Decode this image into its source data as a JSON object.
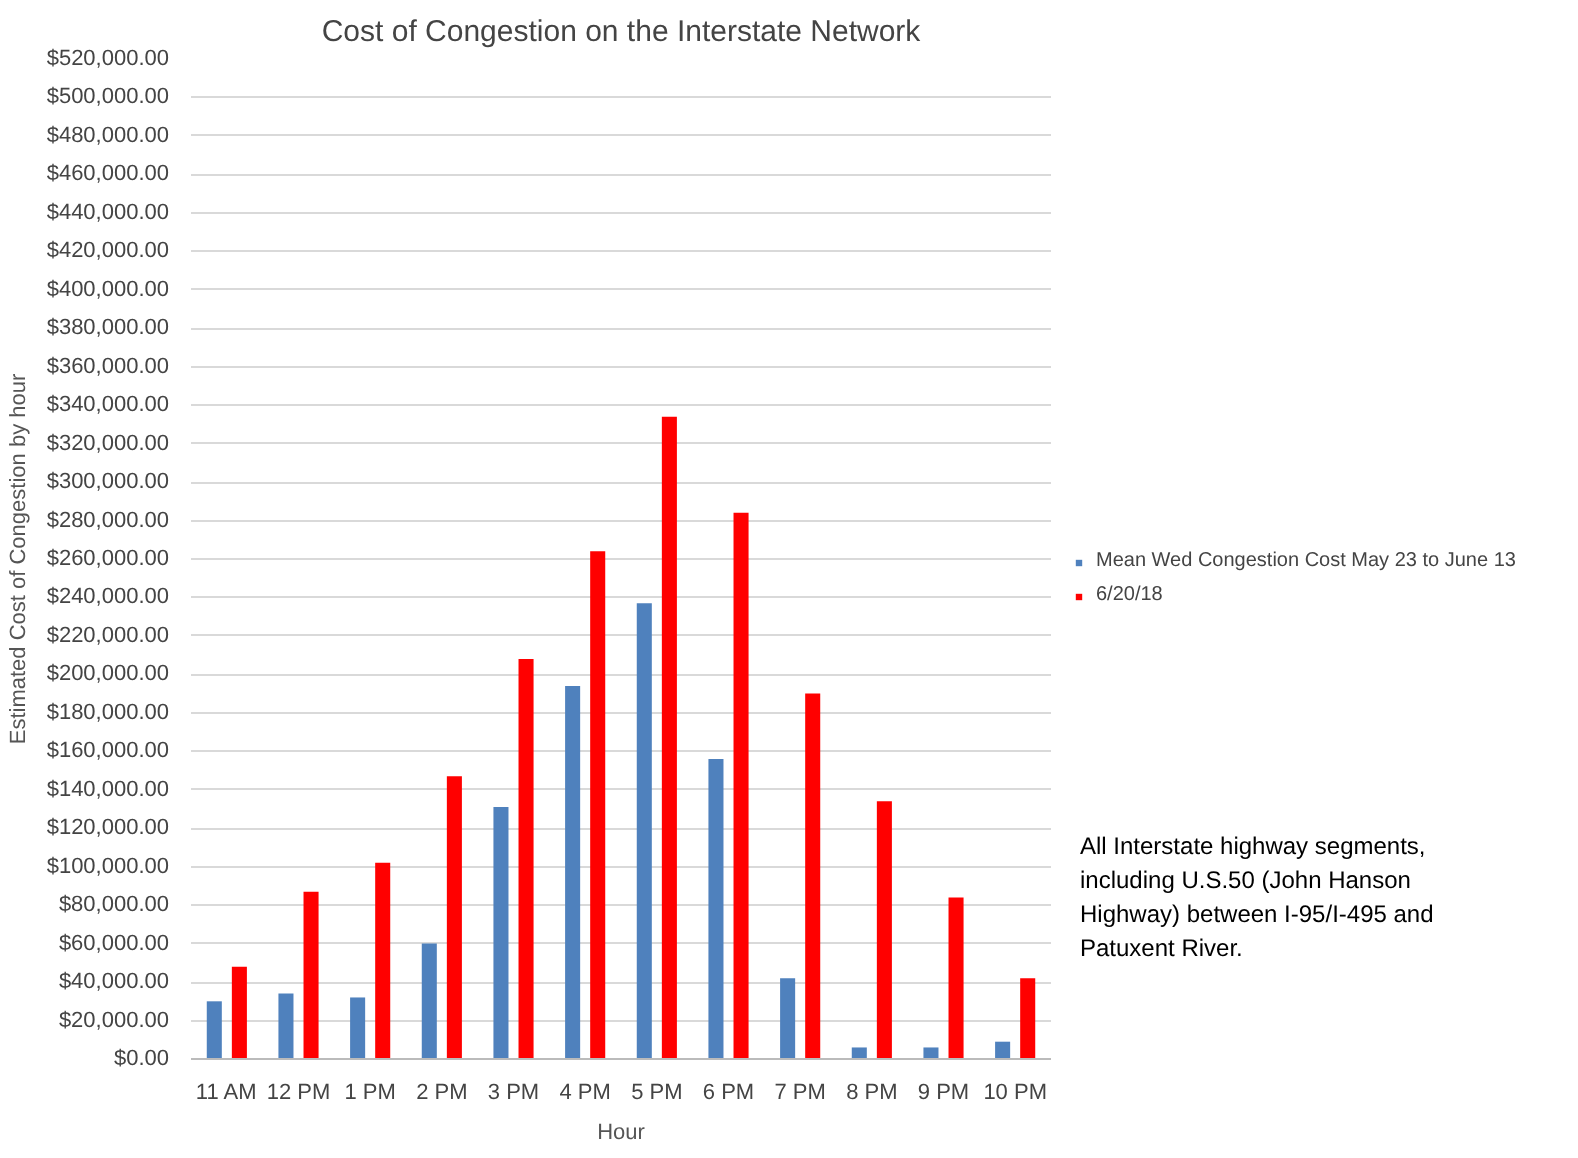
{
  "chart_data": {
    "type": "bar",
    "title": "Cost of Congestion on the Interstate Network",
    "xlabel": "Hour",
    "ylabel": "Estimated Cost of Congestion by hour",
    "categories": [
      "11 AM",
      "12 PM",
      "1 PM",
      "2 PM",
      "3 PM",
      "4 PM",
      "5 PM",
      "6 PM",
      "7 PM",
      "8 PM",
      "9 PM",
      "10 PM"
    ],
    "series": [
      {
        "name": "Mean Wed Congestion Cost May 23 to June 13",
        "color": "#4f81bd",
        "values": [
          30000,
          34000,
          32000,
          60000,
          131000,
          194000,
          237000,
          156000,
          42000,
          6000,
          6000,
          9000
        ]
      },
      {
        "name": "6/20/18",
        "color": "#ff0000",
        "values": [
          48000,
          87000,
          102000,
          147000,
          208000,
          264000,
          334000,
          284000,
          190000,
          134000,
          84000,
          42000
        ]
      }
    ],
    "ylim": [
      0,
      520000
    ],
    "yticks": [
      {
        "value": 0,
        "label": "$0.00"
      },
      {
        "value": 20000,
        "label": "$20,000.00"
      },
      {
        "value": 40000,
        "label": "$40,000.00"
      },
      {
        "value": 60000,
        "label": "$60,000.00"
      },
      {
        "value": 80000,
        "label": "$80,000.00"
      },
      {
        "value": 100000,
        "label": "$100,000.00"
      },
      {
        "value": 120000,
        "label": "$120,000.00"
      },
      {
        "value": 140000,
        "label": "$140,000.00"
      },
      {
        "value": 160000,
        "label": "$160,000.00"
      },
      {
        "value": 180000,
        "label": "$180,000.00"
      },
      {
        "value": 200000,
        "label": "$200,000.00"
      },
      {
        "value": 220000,
        "label": "$220,000.00"
      },
      {
        "value": 240000,
        "label": "$240,000.00"
      },
      {
        "value": 260000,
        "label": "$260,000.00"
      },
      {
        "value": 280000,
        "label": "$280,000.00"
      },
      {
        "value": 300000,
        "label": "$300,000.00"
      },
      {
        "value": 320000,
        "label": "$320,000.00"
      },
      {
        "value": 340000,
        "label": "$340,000.00"
      },
      {
        "value": 360000,
        "label": "$360,000.00"
      },
      {
        "value": 380000,
        "label": "$380,000.00"
      },
      {
        "value": 400000,
        "label": "$400,000.00"
      },
      {
        "value": 420000,
        "label": "$420,000.00"
      },
      {
        "value": 440000,
        "label": "$440,000.00"
      },
      {
        "value": 460000,
        "label": "$460,000.00"
      },
      {
        "value": 480000,
        "label": "$480,000.00"
      },
      {
        "value": 500000,
        "label": "$500,000.00"
      },
      {
        "value": 520000,
        "label": "$520,000.00"
      }
    ],
    "grid": "y",
    "legend": "right",
    "annotations": [
      "All Interstate highway segments, including U.S.50 (John Hanson Highway) between I-95/I-495 and Patuxent River."
    ]
  }
}
